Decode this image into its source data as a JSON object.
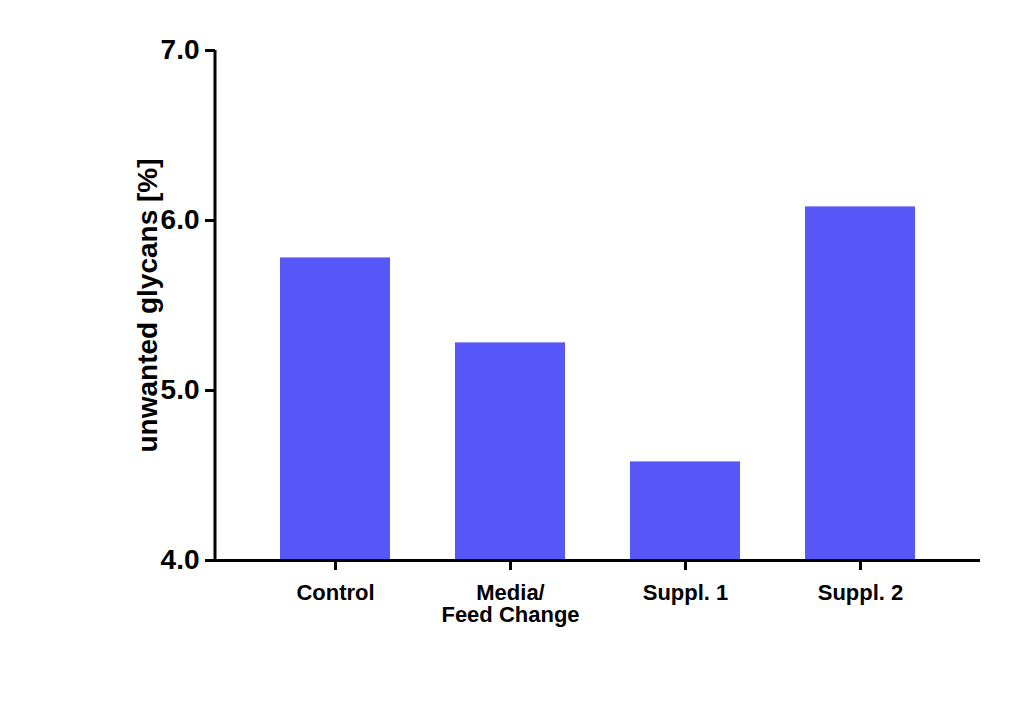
{
  "chart_data": {
    "type": "bar",
    "y_label": "unwanted glycans [%]",
    "categories": [
      "Control",
      "Media/\nFeed Change",
      "Suppl. 1",
      "Suppl. 2"
    ],
    "values": [
      5.78,
      5.28,
      4.58,
      6.08
    ],
    "color": "#5757f7",
    "ylim": [
      4,
      7
    ],
    "yticks": [
      4,
      5,
      6,
      7
    ],
    "grid": false
  }
}
